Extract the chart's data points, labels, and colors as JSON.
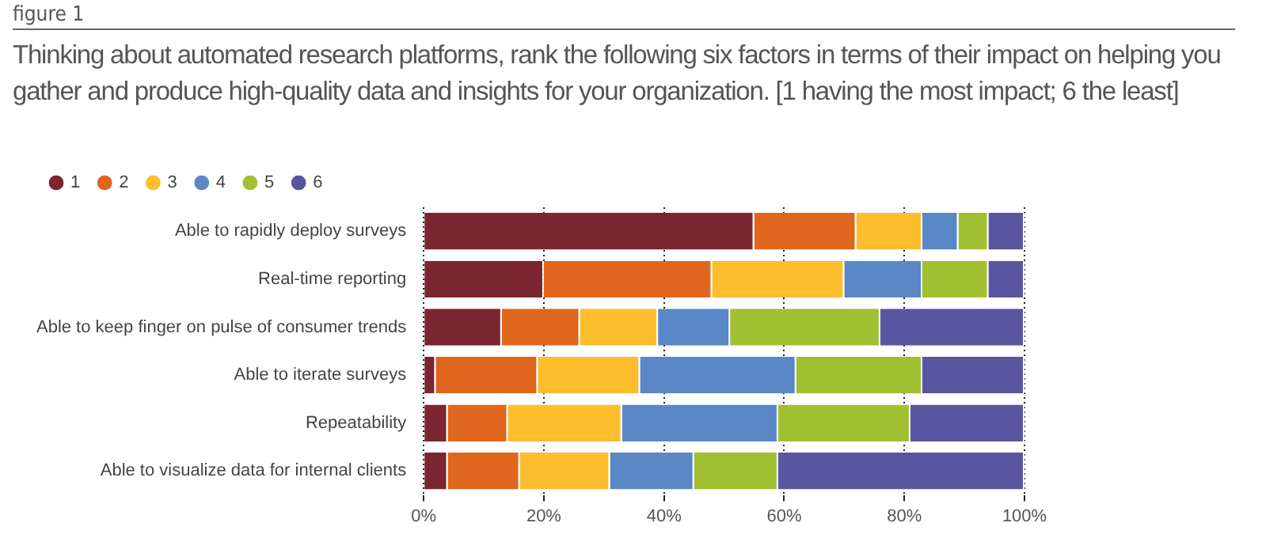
{
  "chart_data": {
    "type": "bar",
    "orientation": "horizontal",
    "stacked": true,
    "title": "Thinking about automated research platforms, rank the following six factors in terms of their impact on helping you gather and produce high-quality data and insights for your organization. [1 having the most impact; 6 the least]",
    "annotations": [
      "figure 1"
    ],
    "categories": [
      "Able to rapidly deploy surveys",
      "Real-time reporting",
      "Able to keep finger on pulse of consumer trends",
      "Able to iterate surveys",
      "Repeatability",
      "Able to visualize data for internal clients"
    ],
    "series": [
      {
        "name": "1",
        "color": "#7a2530",
        "values": [
          55,
          20,
          13,
          2,
          4,
          4
        ]
      },
      {
        "name": "2",
        "color": "#e0661e",
        "values": [
          17,
          28,
          13,
          17,
          10,
          12
        ]
      },
      {
        "name": "3",
        "color": "#fdbd2c",
        "values": [
          11,
          22,
          13,
          17,
          19,
          15
        ]
      },
      {
        "name": "4",
        "color": "#5a88c6",
        "values": [
          6,
          13,
          12,
          26,
          26,
          14
        ]
      },
      {
        "name": "5",
        "color": "#a2bf32",
        "values": [
          5,
          11,
          25,
          21,
          22,
          14
        ]
      },
      {
        "name": "6",
        "color": "#5a55a1",
        "values": [
          6,
          6,
          24,
          17,
          19,
          41
        ]
      }
    ],
    "xlim": [
      0,
      100
    ],
    "xticks": [
      {
        "value": 0,
        "label": "0%"
      },
      {
        "value": 20,
        "label": "20%"
      },
      {
        "value": 40,
        "label": "40%"
      },
      {
        "value": 60,
        "label": "60%"
      },
      {
        "value": 80,
        "label": "80%"
      },
      {
        "value": 100,
        "label": "100%"
      }
    ],
    "grid": "x",
    "legend": "top left"
  }
}
